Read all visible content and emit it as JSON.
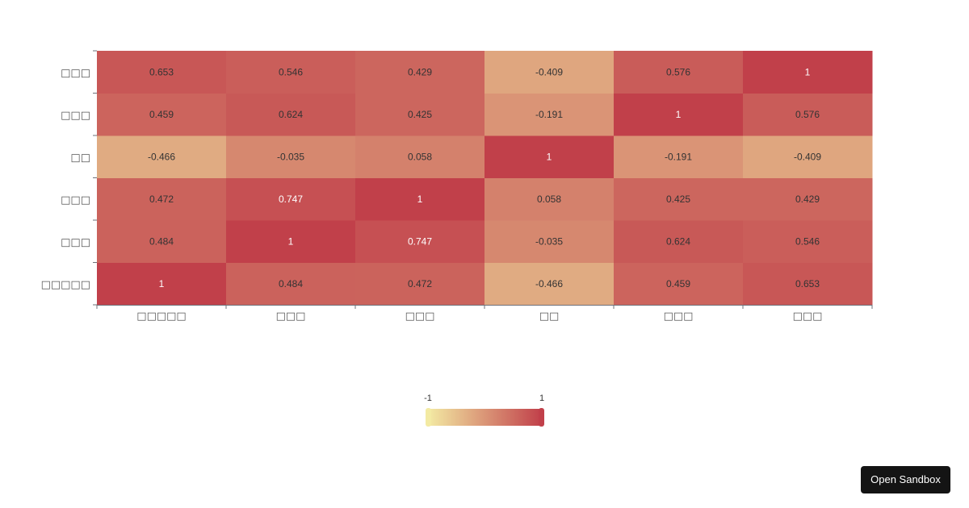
{
  "chart_data": {
    "type": "heatmap",
    "title": "",
    "xlabel": "",
    "ylabel": "",
    "x_categories": [
      "□□□□□",
      "□□□",
      "□□□",
      "□□",
      "□□□",
      "□□□"
    ],
    "y_categories": [
      "□□□□□",
      "□□□",
      "□□□",
      "□□",
      "□□□",
      "□□□"
    ],
    "values": [
      [
        1,
        0.484,
        0.472,
        -0.466,
        0.459,
        0.653
      ],
      [
        0.484,
        1,
        0.747,
        -0.035,
        0.624,
        0.546
      ],
      [
        0.472,
        0.747,
        1,
        0.058,
        0.425,
        0.429
      ],
      [
        -0.466,
        -0.035,
        0.058,
        1,
        -0.191,
        -0.409
      ],
      [
        0.459,
        0.624,
        0.425,
        -0.191,
        1,
        0.576
      ],
      [
        0.653,
        0.546,
        0.429,
        -0.409,
        0.576,
        1
      ]
    ],
    "value_labels": [
      [
        "1",
        "0.484",
        "0.472",
        "-0.466",
        "0.459",
        "0.653"
      ],
      [
        "0.484",
        "1",
        "0.747",
        "-0.035",
        "0.624",
        "0.546"
      ],
      [
        "0.472",
        "0.747",
        "1",
        "0.058",
        "0.425",
        "0.429"
      ],
      [
        "-0.466",
        "-0.035",
        "0.058",
        "1",
        "-0.191",
        "-0.409"
      ],
      [
        "0.459",
        "0.624",
        "0.425",
        "-0.191",
        "1",
        "0.576"
      ],
      [
        "0.653",
        "0.546",
        "0.429",
        "-0.409",
        "0.576",
        "1"
      ]
    ],
    "value_range": [
      -1,
      1
    ],
    "color_scale": {
      "low": "#f3eaa3",
      "high": "#c1404a"
    },
    "legend": {
      "position": "bottom-center",
      "min_label": "-1",
      "max_label": "1"
    },
    "grid": false
  },
  "toolbar": {
    "open_sandbox_label": "Open Sandbox"
  }
}
